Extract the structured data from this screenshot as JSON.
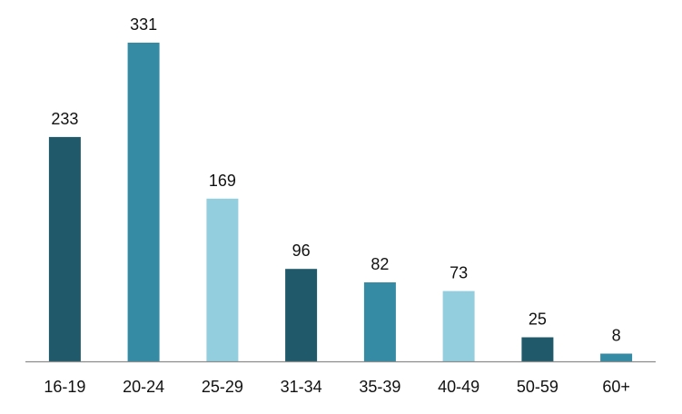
{
  "chart_data": {
    "type": "bar",
    "categories": [
      "16-19",
      "20-24",
      "25-29",
      "31-34",
      "35-39",
      "40-49",
      "50-59",
      "60+"
    ],
    "values": [
      233,
      331,
      169,
      96,
      82,
      73,
      25,
      8
    ],
    "data_labels": [
      "233",
      "331",
      "169",
      "96",
      "82",
      "73",
      "25",
      "8"
    ],
    "bar_colors": [
      "#205a6a",
      "#348ba3",
      "#93cede",
      "#205a6a",
      "#348ba3",
      "#93cede",
      "#205a6a",
      "#348ba3"
    ],
    "axis_color": "#8c8c8c",
    "ylim": [
      0,
      331
    ],
    "grid": false,
    "legend": "none",
    "title": "",
    "xlabel": "",
    "ylabel": ""
  }
}
